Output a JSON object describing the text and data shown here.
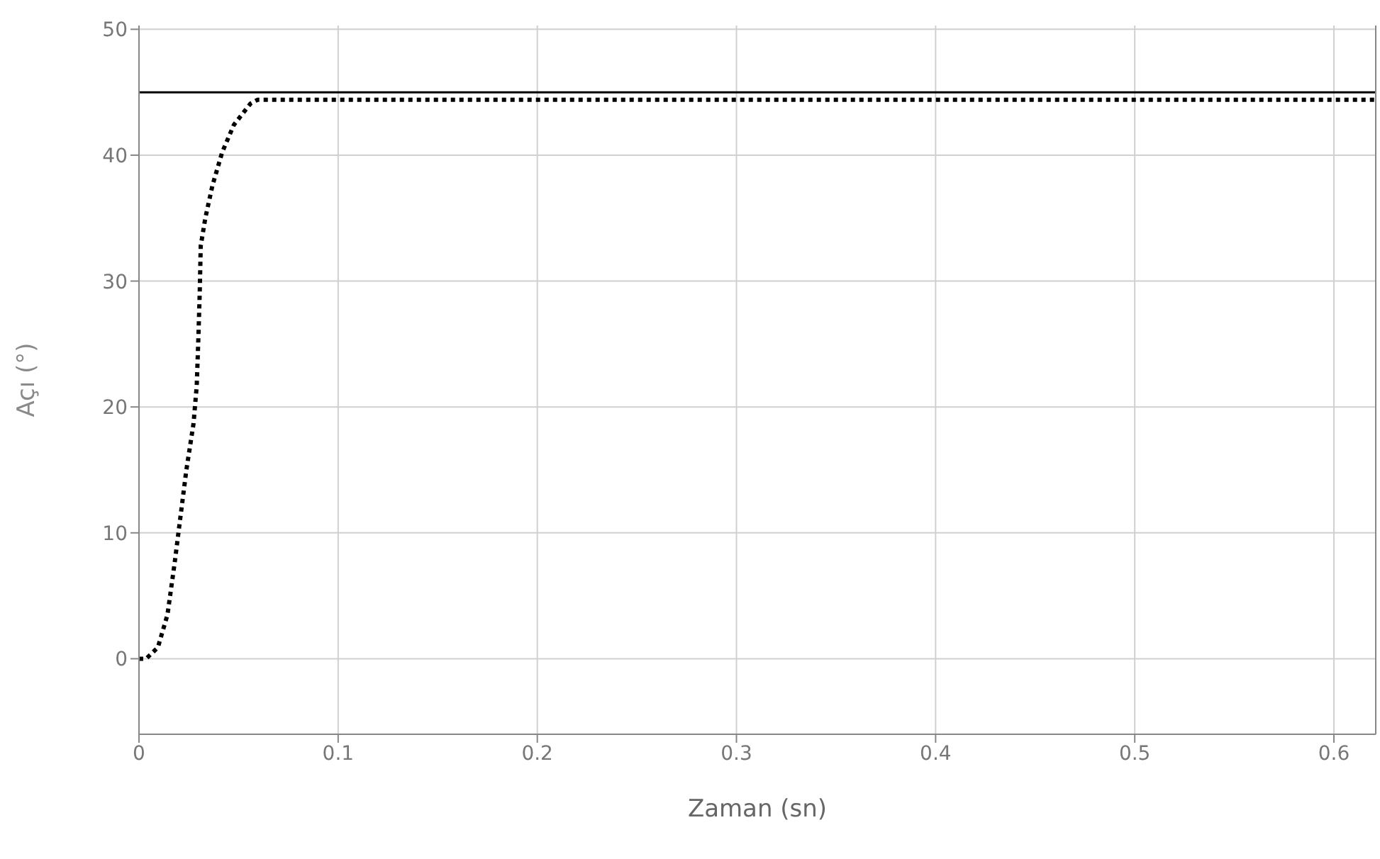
{
  "chart_data": {
    "type": "line",
    "xlabel": "Zaman (sn)",
    "ylabel": "Açı (°)",
    "xlim": [
      0,
      0.621
    ],
    "xticks": [
      0,
      0.1,
      0.2,
      0.3,
      0.4,
      0.5,
      0.6
    ],
    "ylim": [
      -6,
      50.3
    ],
    "yticks": [
      0,
      10,
      20,
      30,
      40,
      50
    ],
    "grid": true,
    "line_style": "dotted",
    "marker": "none",
    "series": [
      {
        "color": "#000000",
        "x": [
          0,
          0.0036,
          0.0095,
          0.0143,
          0.0179,
          0.0202,
          0.0238,
          0.0274,
          0.029,
          0.0298,
          0.0305,
          0.031,
          0.0333,
          0.0369,
          0.0417,
          0.0476,
          0.056,
          0.0595,
          0.621
        ],
        "values": [
          0,
          0,
          0.9,
          3.5,
          7.6,
          10.5,
          15,
          18.7,
          21.7,
          25.4,
          29.1,
          32.8,
          35,
          37.6,
          40.2,
          42.4,
          44.1,
          44.4,
          44.4
        ]
      }
    ],
    "ref_lines": [
      {
        "axis": "y",
        "value": 45,
        "color": "#000000",
        "line_style": "solid"
      }
    ]
  }
}
